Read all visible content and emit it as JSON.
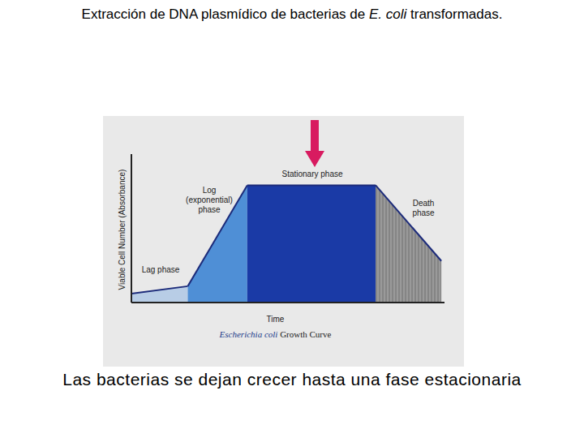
{
  "chart_data": {
    "type": "area",
    "title": [
      {
        "text": "Extracción de DNA plasmídico de bacterias de"
      },
      {
        "text": "E. coli",
        "italic": true
      },
      {
        "text": "transformadas."
      }
    ],
    "ylabel": "Viable Cell Number (Absorbance)",
    "xlabel": "Time",
    "caption": [
      {
        "text": "Escherichia coli",
        "italic": true
      },
      {
        "text": "Growth Curve"
      }
    ],
    "annotations": [
      "Las bacterias se dejan crecer hasta una fase estacionaria"
    ],
    "xlim": [
      0,
      100
    ],
    "ylim": [
      0,
      100
    ],
    "tick_labels": false,
    "grid": false,
    "series": [
      {
        "name": "Lag phase",
        "color": "#b8cde6",
        "x": [
          0,
          18
        ],
        "values": [
          6,
          11
        ]
      },
      {
        "name": "Log\n(exponential)\nphase",
        "color": "#4f8fd6",
        "x": [
          18,
          37
        ],
        "values": [
          11,
          79
        ]
      },
      {
        "name": "Stationary phase",
        "color": "#1a3aa6",
        "x": [
          37,
          78
        ],
        "values": [
          79,
          79
        ]
      },
      {
        "name": "Death\nphase",
        "color": "#9a9a9a",
        "x": [
          78,
          99
        ],
        "values": [
          79,
          28
        ]
      }
    ]
  }
}
